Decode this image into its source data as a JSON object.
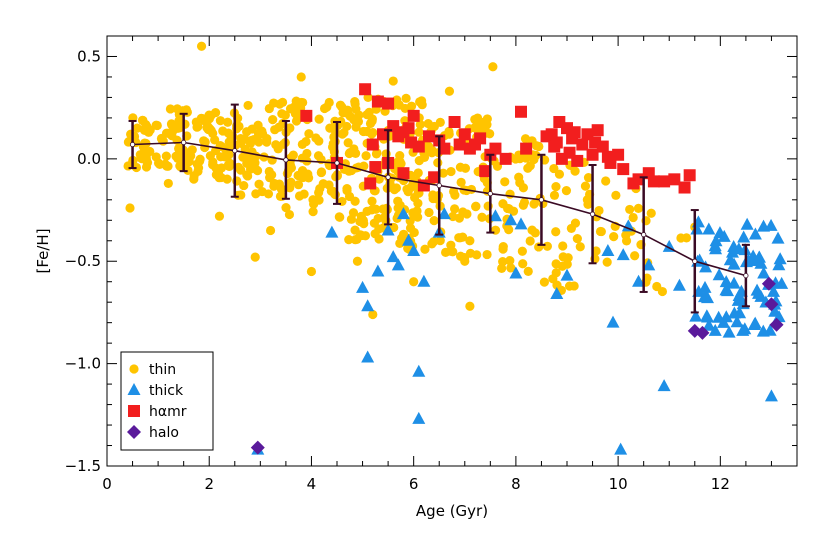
{
  "chart_data": {
    "type": "scatter",
    "xlabel": "Age (Gyr)",
    "ylabel": "[Fe/H]",
    "xlim": [
      0,
      13.5
    ],
    "ylim": [
      -1.5,
      0.6
    ],
    "xticks": [
      0,
      2,
      4,
      6,
      8,
      10,
      12
    ],
    "yticks": [
      0.5,
      0.0,
      -0.5,
      -1.0,
      -1.5
    ],
    "xtick_labels": [
      "0",
      "2",
      "4",
      "6",
      "8",
      "10",
      "12"
    ],
    "ytick_labels": [
      "0.5",
      "0.0",
      "−0.5",
      "−1.0",
      "−1.5"
    ],
    "legend_position": "bottom-left",
    "series": [
      {
        "name": "thin",
        "marker": "circle",
        "color": "#FFC400",
        "cloud": [
          {
            "age": [
              0.4,
              1.5
            ],
            "feh": [
              -0.05,
              0.25
            ],
            "n": 70
          },
          {
            "age": [
              1.5,
              2.5
            ],
            "feh": [
              -0.1,
              0.25
            ],
            "n": 70
          },
          {
            "age": [
              2.5,
              3.5
            ],
            "feh": [
              -0.2,
              0.28
            ],
            "n": 70
          },
          {
            "age": [
              3.5,
              4.5
            ],
            "feh": [
              -0.3,
              0.3
            ],
            "n": 75
          },
          {
            "age": [
              4.5,
              5.5
            ],
            "feh": [
              -0.4,
              0.33
            ],
            "n": 100
          },
          {
            "age": [
              5.5,
              6.5
            ],
            "feh": [
              -0.45,
              0.3
            ],
            "n": 100
          },
          {
            "age": [
              6.5,
              7.5
            ],
            "feh": [
              -0.5,
              0.2
            ],
            "n": 65
          },
          {
            "age": [
              7.5,
              8.5
            ],
            "feh": [
              -0.55,
              0.1
            ],
            "n": 50
          },
          {
            "age": [
              8.5,
              9.5
            ],
            "feh": [
              -0.65,
              0.0
            ],
            "n": 35
          },
          {
            "age": [
              9.5,
              10.5
            ],
            "feh": [
              -0.6,
              -0.1
            ],
            "n": 20
          },
          {
            "age": [
              10.5,
              11.5
            ],
            "feh": [
              -0.65,
              -0.25
            ],
            "n": 10
          }
        ],
        "points": [
          [
            0.45,
            -0.24
          ],
          [
            1.85,
            0.55
          ],
          [
            7.55,
            0.45
          ],
          [
            2.9,
            -0.48
          ],
          [
            4.0,
            -0.55
          ],
          [
            5.2,
            -0.76
          ],
          [
            6.0,
            -0.6
          ],
          [
            7.1,
            -0.72
          ],
          [
            4.9,
            -0.5
          ],
          [
            3.2,
            -0.35
          ],
          [
            5.6,
            0.38
          ],
          [
            2.2,
            -0.28
          ],
          [
            1.2,
            -0.12
          ],
          [
            3.8,
            0.4
          ],
          [
            6.7,
            0.33
          ]
        ]
      },
      {
        "name": "thick",
        "marker": "triangle",
        "color": "#1E8FE6",
        "cloud": [
          {
            "age": [
              11.5,
              13.2
            ],
            "feh": [
              -0.85,
              -0.3
            ],
            "n": 75
          }
        ],
        "points": [
          [
            4.4,
            -0.36
          ],
          [
            5.0,
            -0.63
          ],
          [
            5.1,
            -0.72
          ],
          [
            5.3,
            -0.55
          ],
          [
            5.5,
            -0.35
          ],
          [
            5.6,
            -0.48
          ],
          [
            5.7,
            -0.52
          ],
          [
            5.8,
            -0.27
          ],
          [
            5.9,
            -0.4
          ],
          [
            6.0,
            -0.45
          ],
          [
            6.2,
            -0.6
          ],
          [
            6.5,
            -0.36
          ],
          [
            6.6,
            -0.27
          ],
          [
            7.6,
            -0.28
          ],
          [
            7.9,
            -0.3
          ],
          [
            8.0,
            -0.56
          ],
          [
            8.1,
            -0.32
          ],
          [
            8.8,
            -0.66
          ],
          [
            9.0,
            -0.57
          ],
          [
            9.8,
            -0.45
          ],
          [
            10.1,
            -0.47
          ],
          [
            10.2,
            -0.33
          ],
          [
            9.9,
            -0.8
          ],
          [
            10.4,
            -0.6
          ],
          [
            10.6,
            -0.52
          ],
          [
            10.9,
            -1.11
          ],
          [
            11.0,
            -0.43
          ],
          [
            11.2,
            -0.62
          ],
          [
            11.7,
            -0.63
          ],
          [
            11.9,
            -0.84
          ],
          [
            5.1,
            -0.97
          ],
          [
            6.1,
            -1.04
          ],
          [
            6.1,
            -1.27
          ],
          [
            2.95,
            -1.42
          ],
          [
            10.05,
            -1.42
          ],
          [
            13.0,
            -1.16
          ]
        ]
      },
      {
        "name": "hαmr",
        "marker": "square",
        "color": "#F21E1E",
        "points": [
          [
            3.9,
            0.21
          ],
          [
            5.05,
            0.34
          ],
          [
            5.3,
            0.28
          ],
          [
            5.5,
            0.27
          ],
          [
            5.9,
            0.15
          ],
          [
            6.0,
            0.21
          ],
          [
            5.2,
            0.07
          ],
          [
            5.4,
            0.12
          ],
          [
            5.6,
            0.16
          ],
          [
            5.7,
            0.11
          ],
          [
            5.8,
            0.13
          ],
          [
            5.95,
            0.08
          ],
          [
            6.1,
            0.06
          ],
          [
            6.3,
            0.11
          ],
          [
            6.5,
            0.09
          ],
          [
            6.6,
            0.05
          ],
          [
            6.8,
            0.18
          ],
          [
            6.9,
            0.07
          ],
          [
            7.0,
            0.12
          ],
          [
            7.1,
            0.05
          ],
          [
            7.2,
            0.07
          ],
          [
            7.3,
            0.1
          ],
          [
            7.5,
            0.02
          ],
          [
            7.6,
            0.05
          ],
          [
            5.5,
            -0.02
          ],
          [
            5.25,
            -0.04
          ],
          [
            6.4,
            -0.09
          ],
          [
            7.4,
            -0.06
          ],
          [
            7.8,
            0.0
          ],
          [
            8.1,
            0.23
          ],
          [
            8.6,
            0.11
          ],
          [
            8.7,
            0.12
          ],
          [
            8.75,
            0.06
          ],
          [
            8.8,
            0.08
          ],
          [
            8.85,
            0.18
          ],
          [
            8.9,
            0.0
          ],
          [
            9.0,
            0.15
          ],
          [
            9.05,
            0.03
          ],
          [
            9.1,
            0.1
          ],
          [
            9.15,
            0.13
          ],
          [
            9.2,
            -0.01
          ],
          [
            9.3,
            0.07
          ],
          [
            9.4,
            0.12
          ],
          [
            9.5,
            0.02
          ],
          [
            9.55,
            0.08
          ],
          [
            9.6,
            0.14
          ],
          [
            9.7,
            0.06
          ],
          [
            9.8,
            0.01
          ],
          [
            9.85,
            -0.02
          ],
          [
            10.0,
            0.02
          ],
          [
            10.1,
            -0.05
          ],
          [
            10.3,
            -0.12
          ],
          [
            10.4,
            -0.1
          ],
          [
            10.6,
            -0.07
          ],
          [
            10.7,
            -0.11
          ],
          [
            10.9,
            -0.11
          ],
          [
            11.1,
            -0.1
          ],
          [
            11.3,
            -0.14
          ],
          [
            11.4,
            -0.08
          ],
          [
            8.2,
            0.05
          ],
          [
            5.8,
            -0.07
          ],
          [
            4.5,
            -0.02
          ],
          [
            5.15,
            -0.12
          ],
          [
            6.2,
            -0.13
          ]
        ]
      },
      {
        "name": "halo",
        "marker": "diamond",
        "color": "#5A1A9B",
        "points": [
          [
            2.95,
            -1.41
          ],
          [
            11.5,
            -0.84
          ],
          [
            11.65,
            -0.85
          ],
          [
            12.95,
            -0.61
          ],
          [
            13.0,
            -0.71
          ],
          [
            13.1,
            -0.81
          ]
        ]
      }
    ],
    "mean_relation": {
      "name": "binned mean",
      "color": "#3A0A24",
      "x": [
        0.5,
        1.5,
        2.5,
        3.5,
        4.5,
        5.5,
        6.5,
        7.5,
        8.5,
        9.5,
        10.5,
        11.5,
        12.5
      ],
      "y": [
        0.07,
        0.08,
        0.04,
        -0.005,
        -0.02,
        -0.09,
        -0.13,
        -0.17,
        -0.2,
        -0.27,
        -0.37,
        -0.5,
        -0.57
      ],
      "err": [
        0.115,
        0.14,
        0.225,
        0.19,
        0.2,
        0.23,
        0.24,
        0.19,
        0.22,
        0.24,
        0.28,
        0.25,
        0.15
      ]
    }
  }
}
